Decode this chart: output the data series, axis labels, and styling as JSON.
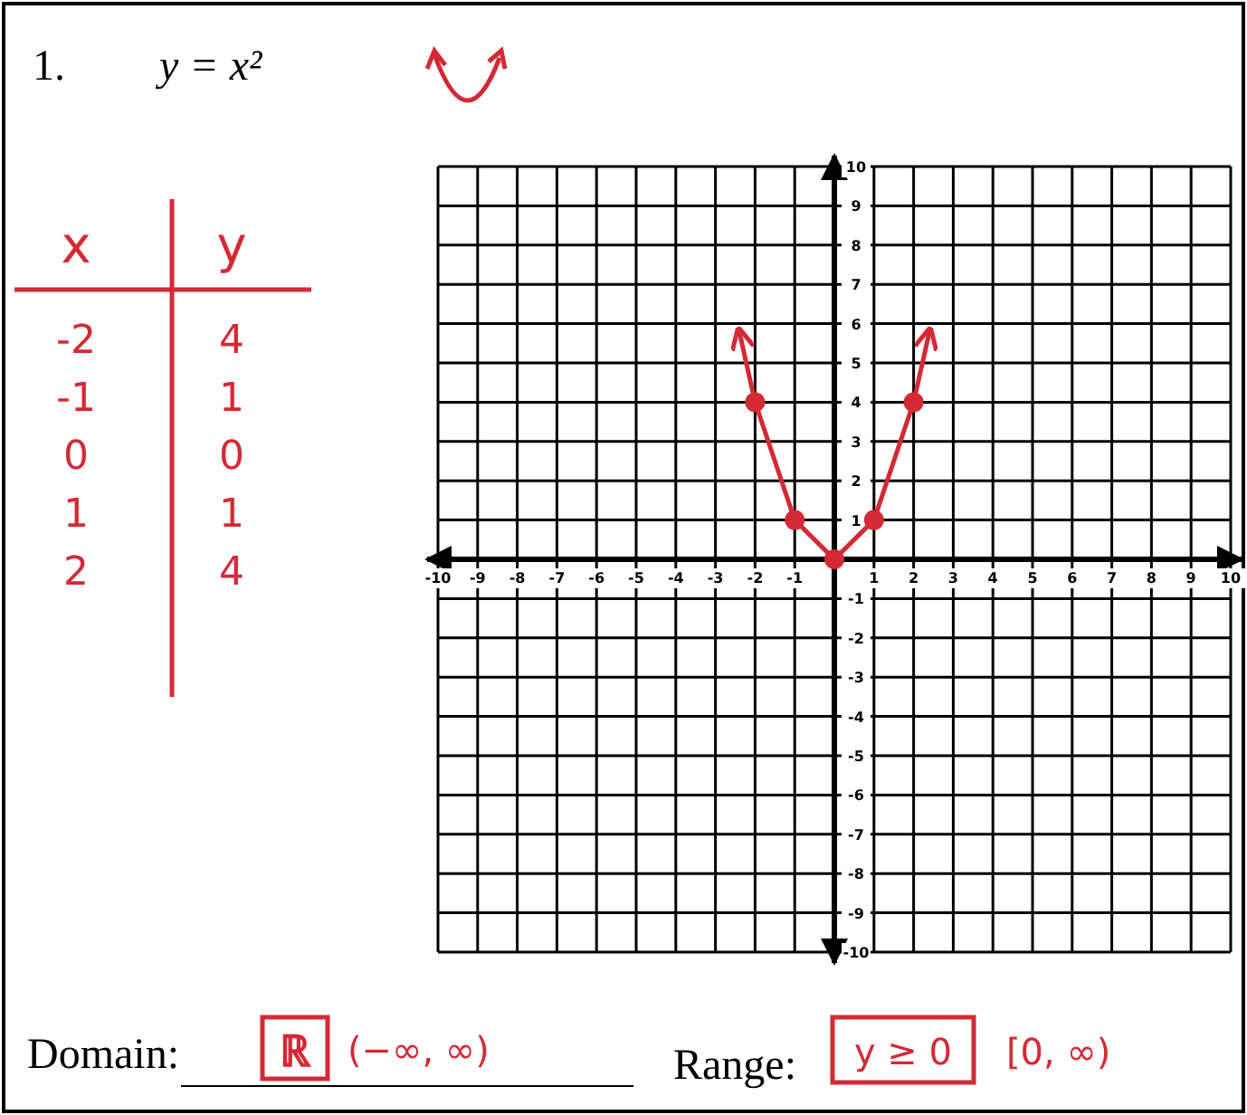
{
  "chart_data": {
    "type": "line",
    "title": "y = x²",
    "xlim": [
      -10,
      10
    ],
    "ylim": [
      -10,
      10
    ],
    "xticks": [
      -10,
      -9,
      -8,
      -7,
      -6,
      -5,
      -4,
      -3,
      -2,
      -1,
      {
        "value": 0,
        "label": null
      },
      1,
      2,
      3,
      4,
      5,
      6,
      7,
      8,
      9,
      10
    ],
    "yticks": [
      -10,
      -9,
      -8,
      -7,
      -6,
      -5,
      -4,
      -3,
      -2,
      -1,
      {
        "value": 0,
        "label": null
      },
      1,
      2,
      3,
      4,
      5,
      6,
      7,
      8,
      9,
      10
    ],
    "grid": true,
    "series": [
      {
        "marker": "none",
        "color": "#d42a35",
        "x": [
          -2.4,
          -2,
          -1,
          0,
          1,
          2,
          2.4
        ],
        "values": [
          5.8,
          4,
          1,
          0,
          1,
          4,
          5.8
        ]
      },
      {
        "type": "scatter",
        "marker": "circle",
        "color": "#d42a35",
        "x": [
          -2,
          -1,
          0,
          1,
          2
        ],
        "values": [
          4,
          1,
          0,
          1,
          4
        ]
      }
    ],
    "annotations": [
      "1.",
      "x",
      "y",
      "-2",
      "4",
      "-1",
      "1",
      "0",
      "0",
      "1",
      "1",
      "2",
      "4",
      "Domain:",
      "ℝ",
      "(−∞, ∞)",
      "Range:",
      "y ≥ 0",
      "[0, ∞)"
    ]
  }
}
